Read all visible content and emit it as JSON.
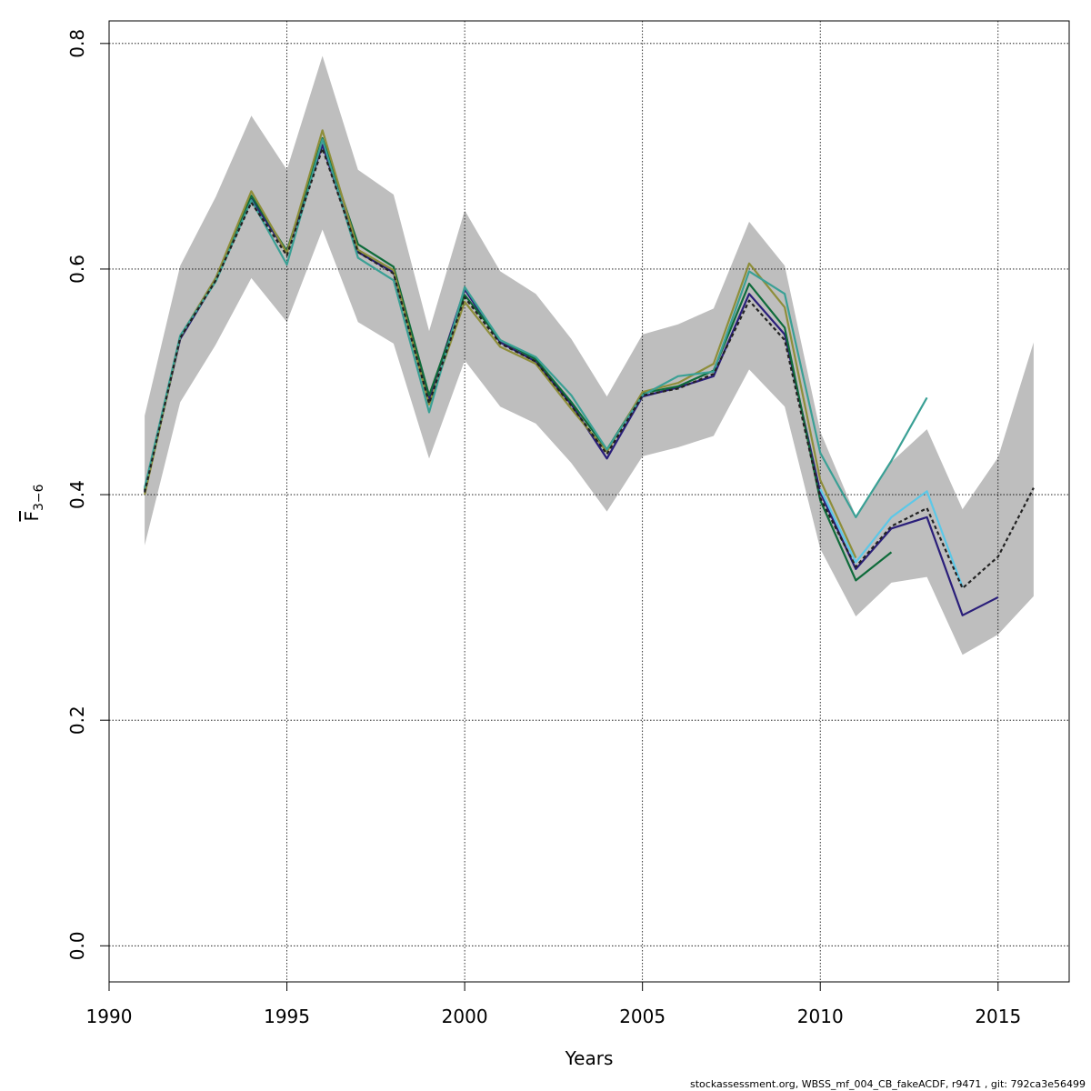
{
  "chart_data": {
    "type": "line",
    "xlabel": "Years",
    "ylabel": {
      "main": "F",
      "sub": "3−6"
    },
    "xlim": [
      1990,
      2016
    ],
    "ylim": [
      0,
      0.8
    ],
    "x_ticks": [
      "1990",
      "1995",
      "2000",
      "2005",
      "2010",
      "2015"
    ],
    "y_ticks": [
      "0.0",
      "0.2",
      "0.4",
      "0.6",
      "0.8"
    ],
    "grid": true,
    "band": {
      "color": "#bebebe",
      "x": [
        1991,
        1992,
        1993,
        1994,
        1995,
        1996,
        1997,
        1998,
        1999,
        2000,
        2001,
        2002,
        2003,
        2004,
        2005,
        2006,
        2007,
        2008,
        2009,
        2010,
        2011,
        2012,
        2013,
        2014,
        2015,
        2016
      ],
      "lower": [
        0.355,
        0.482,
        0.533,
        0.592,
        0.553,
        0.635,
        0.553,
        0.534,
        0.432,
        0.519,
        0.478,
        0.463,
        0.428,
        0.385,
        0.434,
        0.442,
        0.452,
        0.511,
        0.478,
        0.352,
        0.292,
        0.322,
        0.327,
        0.258,
        0.276,
        0.31
      ],
      "upper": [
        0.47,
        0.603,
        0.664,
        0.736,
        0.688,
        0.789,
        0.688,
        0.666,
        0.545,
        0.652,
        0.598,
        0.578,
        0.538,
        0.487,
        0.542,
        0.551,
        0.565,
        0.642,
        0.603,
        0.456,
        0.381,
        0.429,
        0.458,
        0.387,
        0.433,
        0.535
      ]
    },
    "series": [
      {
        "color": "#2a1e7a",
        "x": [
          1991,
          1992,
          1993,
          1994,
          1995,
          1996,
          1997,
          1998,
          1999,
          2000,
          2001,
          2002,
          2003,
          2004,
          2005,
          2006,
          2007,
          2008,
          2009,
          2010,
          2011,
          2012,
          2013,
          2014,
          2015
        ],
        "values": [
          0.403,
          0.538,
          0.59,
          0.662,
          0.615,
          0.71,
          0.615,
          0.597,
          0.485,
          0.582,
          0.535,
          0.518,
          0.48,
          0.432,
          0.487,
          0.495,
          0.505,
          0.578,
          0.542,
          0.402,
          0.334,
          0.37,
          0.38,
          0.293,
          0.309
        ]
      },
      {
        "color": "#0e6b3a",
        "x": [
          1991,
          1992,
          1993,
          1994,
          1995,
          1996,
          1997,
          1998,
          1999,
          2000,
          2001,
          2002,
          2003,
          2004,
          2005,
          2006,
          2007,
          2008,
          2009,
          2010,
          2011,
          2012
        ],
        "values": [
          0.404,
          0.54,
          0.592,
          0.665,
          0.616,
          0.716,
          0.622,
          0.602,
          0.488,
          0.577,
          0.537,
          0.52,
          0.482,
          0.44,
          0.49,
          0.496,
          0.51,
          0.587,
          0.548,
          0.395,
          0.324,
          0.349
        ]
      },
      {
        "color": "#8e8e3a",
        "x": [
          1991,
          1992,
          1993,
          1994,
          1995,
          1996,
          1997,
          1998,
          1999,
          2000,
          2001,
          2002,
          2003,
          2004,
          2005,
          2006,
          2007,
          2008,
          2009,
          2010,
          2011
        ],
        "values": [
          0.4,
          0.54,
          0.592,
          0.669,
          0.614,
          0.723,
          0.617,
          0.599,
          0.48,
          0.571,
          0.531,
          0.516,
          0.476,
          0.438,
          0.491,
          0.499,
          0.516,
          0.605,
          0.566,
          0.413,
          0.344
        ]
      },
      {
        "color": "#3aa095",
        "x": [
          1991,
          1992,
          1993,
          1994,
          1995,
          1996,
          1997,
          1998,
          1999,
          2000,
          2001,
          2002,
          2003,
          2004,
          2005,
          2006,
          2007,
          2008,
          2009,
          2010,
          2011,
          2012,
          2013
        ],
        "values": [
          0.406,
          0.541,
          0.589,
          0.661,
          0.604,
          0.715,
          0.61,
          0.59,
          0.473,
          0.584,
          0.537,
          0.522,
          0.488,
          0.44,
          0.488,
          0.505,
          0.509,
          0.598,
          0.578,
          0.437,
          0.38,
          0.43,
          0.486
        ]
      },
      {
        "color": "#5bc8e8",
        "x": [
          2010,
          2011,
          2012,
          2013,
          2014
        ],
        "values": [
          0.405,
          0.34,
          0.38,
          0.403,
          0.318
        ]
      },
      {
        "color": "#222222",
        "dashed": true,
        "x": [
          1991,
          1992,
          1993,
          1994,
          1995,
          1996,
          1997,
          1998,
          1999,
          2000,
          2001,
          2002,
          2003,
          2004,
          2005,
          2006,
          2007,
          2008,
          2009,
          2010,
          2011,
          2012,
          2013,
          2014,
          2015,
          2016
        ],
        "values": [
          0.402,
          0.539,
          0.59,
          0.659,
          0.612,
          0.707,
          0.615,
          0.596,
          0.481,
          0.575,
          0.534,
          0.518,
          0.479,
          0.436,
          0.488,
          0.494,
          0.507,
          0.572,
          0.537,
          0.397,
          0.336,
          0.372,
          0.388,
          0.317,
          0.345,
          0.406
        ]
      }
    ]
  },
  "footer": "stockassessment.org, WBSS_mf_004_CB_fakeACDF, r9471 , git: 792ca3e56499"
}
